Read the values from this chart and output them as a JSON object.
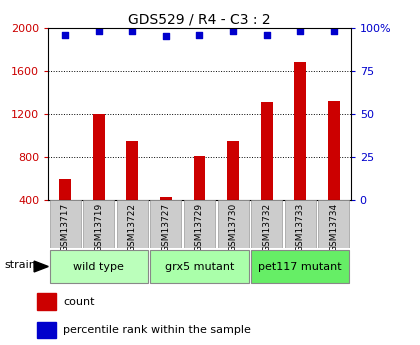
{
  "title": "GDS529 / R4 - C3 : 2",
  "samples": [
    "GSM13717",
    "GSM13719",
    "GSM13722",
    "GSM13727",
    "GSM13729",
    "GSM13730",
    "GSM13732",
    "GSM13733",
    "GSM13734"
  ],
  "counts": [
    600,
    1200,
    950,
    430,
    810,
    950,
    1310,
    1680,
    1320
  ],
  "percentile_ranks": [
    96,
    98,
    98,
    95,
    96,
    98,
    96,
    98,
    98
  ],
  "groups": [
    {
      "label": "wild type",
      "indices": [
        0,
        1,
        2
      ],
      "color": "#bbffbb"
    },
    {
      "label": "grx5 mutant",
      "indices": [
        3,
        4,
        5
      ],
      "color": "#aaffaa"
    },
    {
      "label": "pet117 mutant",
      "indices": [
        6,
        7,
        8
      ],
      "color": "#66ee66"
    }
  ],
  "bar_color": "#cc0000",
  "dot_color": "#0000cc",
  "ylim_left": [
    400,
    2000
  ],
  "ylim_right": [
    0,
    100
  ],
  "yticks_left": [
    400,
    800,
    1200,
    1600,
    2000
  ],
  "yticks_right": [
    0,
    25,
    50,
    75,
    100
  ],
  "grid_values": [
    800,
    1200,
    1600
  ],
  "bar_color_rgb": "#cc0000",
  "dot_color_rgb": "#0000cc",
  "sample_box_color": "#cccccc",
  "sample_box_border": "#999999",
  "bar_width": 0.35
}
